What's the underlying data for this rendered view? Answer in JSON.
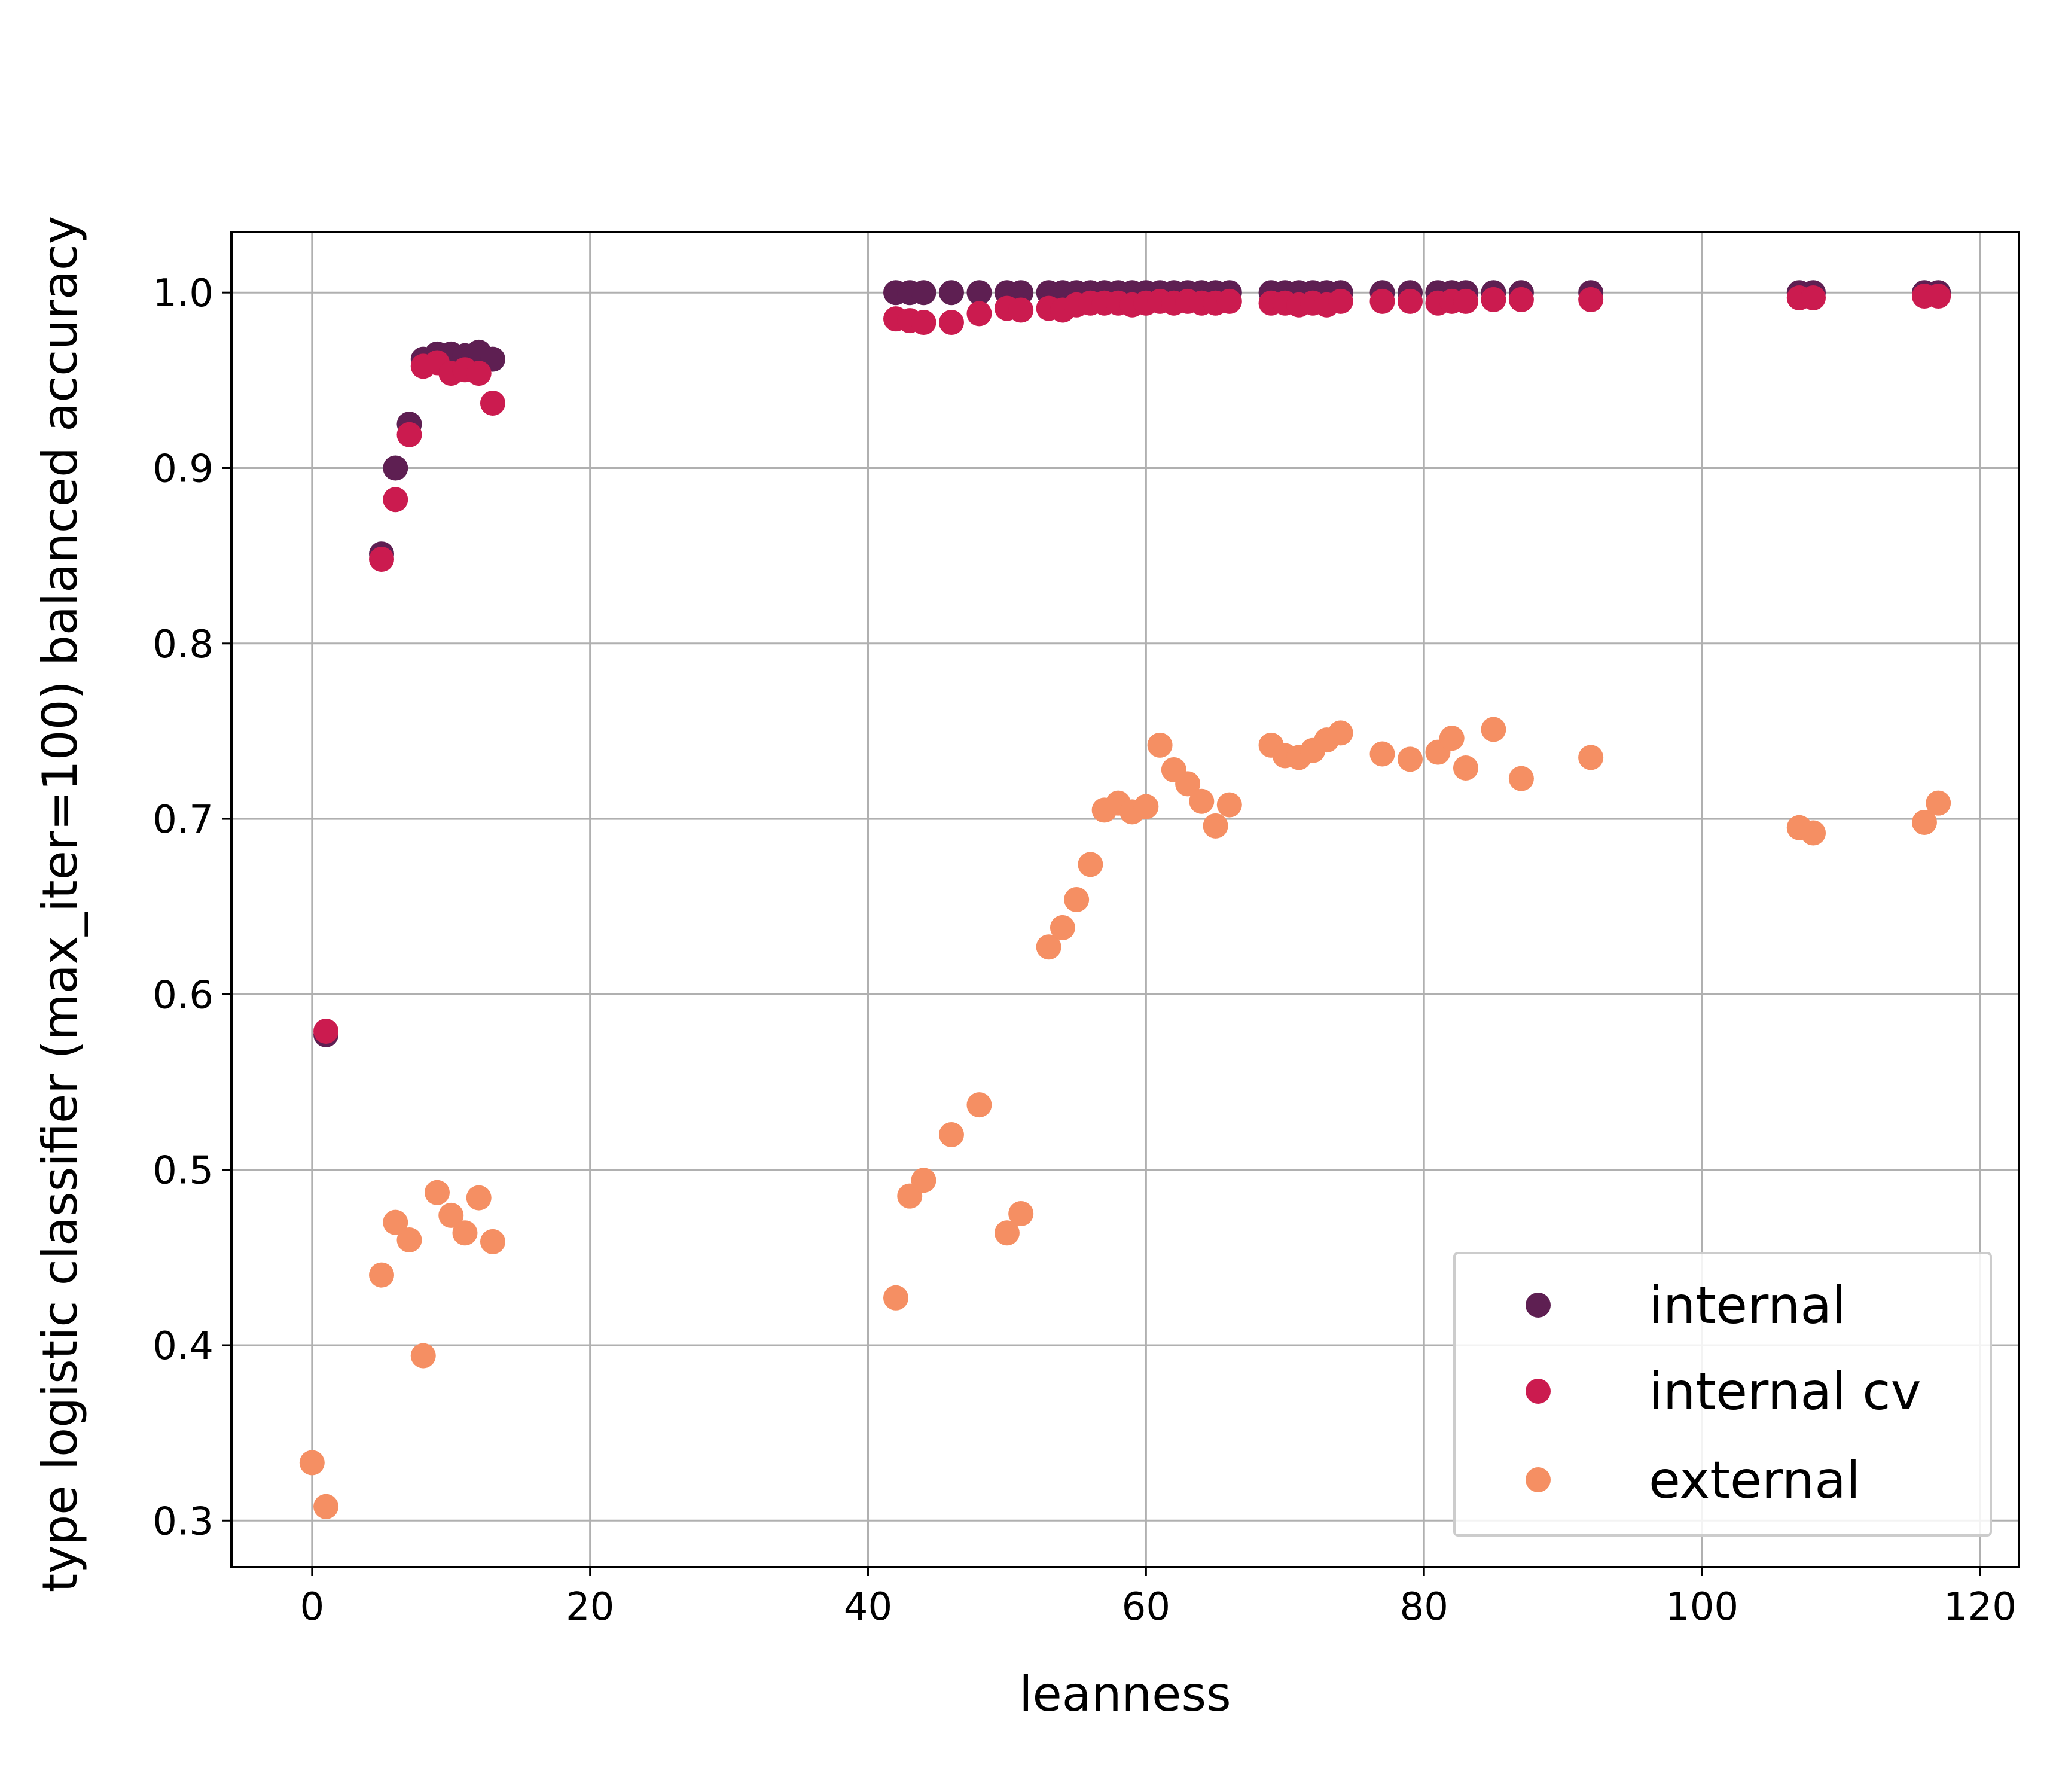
{
  "chart_data": {
    "type": "scatter",
    "title": "",
    "xlabel": "leanness",
    "ylabel": "type logistic classifier (max_iter=100) balanced accuracy",
    "xlim": [
      -5.8,
      122.8
    ],
    "ylim": [
      0.2735,
      1.0345
    ],
    "xticks": [
      0,
      20,
      40,
      60,
      80,
      100,
      120
    ],
    "yticks": [
      0.3,
      0.4,
      0.5,
      0.6,
      0.7,
      0.8,
      0.9,
      1.0
    ],
    "xtick_labels": [
      "0",
      "20",
      "40",
      "60",
      "80",
      "100",
      "120"
    ],
    "ytick_labels": [
      "0.3",
      "0.4",
      "0.5",
      "0.6",
      "0.7",
      "0.8",
      "0.9",
      "1.0"
    ],
    "grid": true,
    "legend_position": "lower-right",
    "series": [
      {
        "name": "internal",
        "color": "#5e1f52",
        "points": [
          [
            1,
            0.577
          ],
          [
            5,
            0.851
          ],
          [
            6,
            0.9
          ],
          [
            7,
            0.925
          ],
          [
            8,
            0.962
          ],
          [
            9,
            0.965
          ],
          [
            10,
            0.965
          ],
          [
            11,
            0.964
          ],
          [
            12,
            0.966
          ],
          [
            13,
            0.962
          ],
          [
            42,
            1.0
          ],
          [
            43,
            1.0
          ],
          [
            44,
            1.0
          ],
          [
            46,
            1.0
          ],
          [
            48,
            1.0
          ],
          [
            50,
            1.0
          ],
          [
            51,
            1.0
          ],
          [
            53,
            1.0
          ],
          [
            54,
            1.0
          ],
          [
            55,
            1.0
          ],
          [
            56,
            1.0
          ],
          [
            57,
            1.0
          ],
          [
            58,
            1.0
          ],
          [
            59,
            1.0
          ],
          [
            60,
            1.0
          ],
          [
            61,
            1.0
          ],
          [
            62,
            1.0
          ],
          [
            63,
            1.0
          ],
          [
            64,
            1.0
          ],
          [
            65,
            1.0
          ],
          [
            66,
            1.0
          ],
          [
            69,
            1.0
          ],
          [
            70,
            1.0
          ],
          [
            71,
            1.0
          ],
          [
            72,
            1.0
          ],
          [
            73,
            1.0
          ],
          [
            74,
            1.0
          ],
          [
            77,
            1.0
          ],
          [
            79,
            1.0
          ],
          [
            81,
            1.0
          ],
          [
            82,
            1.0
          ],
          [
            83,
            1.0
          ],
          [
            85,
            1.0
          ],
          [
            87,
            1.0
          ],
          [
            92,
            1.0
          ],
          [
            107,
            1.0
          ],
          [
            108,
            1.0
          ],
          [
            116,
            1.0
          ],
          [
            117,
            1.0
          ]
        ]
      },
      {
        "name": "internal cv",
        "color": "#cb1b4f",
        "points": [
          [
            1,
            0.579
          ],
          [
            5,
            0.848
          ],
          [
            6,
            0.882
          ],
          [
            7,
            0.919
          ],
          [
            8,
            0.958
          ],
          [
            9,
            0.96
          ],
          [
            10,
            0.954
          ],
          [
            11,
            0.956
          ],
          [
            12,
            0.954
          ],
          [
            13,
            0.937
          ],
          [
            42,
            0.985
          ],
          [
            43,
            0.984
          ],
          [
            44,
            0.983
          ],
          [
            46,
            0.983
          ],
          [
            48,
            0.988
          ],
          [
            50,
            0.991
          ],
          [
            51,
            0.99
          ],
          [
            53,
            0.991
          ],
          [
            54,
            0.99
          ],
          [
            55,
            0.993
          ],
          [
            56,
            0.994
          ],
          [
            57,
            0.994
          ],
          [
            58,
            0.994
          ],
          [
            59,
            0.993
          ],
          [
            60,
            0.994
          ],
          [
            61,
            0.995
          ],
          [
            62,
            0.994
          ],
          [
            63,
            0.995
          ],
          [
            64,
            0.994
          ],
          [
            65,
            0.994
          ],
          [
            66,
            0.995
          ],
          [
            69,
            0.994
          ],
          [
            70,
            0.994
          ],
          [
            71,
            0.993
          ],
          [
            72,
            0.994
          ],
          [
            73,
            0.993
          ],
          [
            74,
            0.995
          ],
          [
            77,
            0.995
          ],
          [
            79,
            0.995
          ],
          [
            81,
            0.994
          ],
          [
            82,
            0.995
          ],
          [
            83,
            0.995
          ],
          [
            85,
            0.996
          ],
          [
            87,
            0.996
          ],
          [
            92,
            0.996
          ],
          [
            107,
            0.997
          ],
          [
            108,
            0.997
          ],
          [
            116,
            0.998
          ],
          [
            117,
            0.998
          ]
        ]
      },
      {
        "name": "external",
        "color": "#f58f63",
        "points": [
          [
            0,
            0.333
          ],
          [
            1,
            0.308
          ],
          [
            5,
            0.44
          ],
          [
            6,
            0.47
          ],
          [
            7,
            0.46
          ],
          [
            8,
            0.394
          ],
          [
            9,
            0.487
          ],
          [
            10,
            0.474
          ],
          [
            11,
            0.464
          ],
          [
            12,
            0.484
          ],
          [
            13,
            0.459
          ],
          [
            42,
            0.427
          ],
          [
            43,
            0.485
          ],
          [
            44,
            0.494
          ],
          [
            46,
            0.52
          ],
          [
            48,
            0.537
          ],
          [
            50,
            0.464
          ],
          [
            51,
            0.475
          ],
          [
            53,
            0.627
          ],
          [
            54,
            0.638
          ],
          [
            55,
            0.654
          ],
          [
            56,
            0.674
          ],
          [
            57,
            0.705
          ],
          [
            58,
            0.709
          ],
          [
            59,
            0.704
          ],
          [
            60,
            0.707
          ],
          [
            61,
            0.742
          ],
          [
            62,
            0.728
          ],
          [
            63,
            0.72
          ],
          [
            64,
            0.71
          ],
          [
            65,
            0.696
          ],
          [
            66,
            0.708
          ],
          [
            69,
            0.742
          ],
          [
            70,
            0.736
          ],
          [
            71,
            0.735
          ],
          [
            72,
            0.739
          ],
          [
            73,
            0.745
          ],
          [
            74,
            0.749
          ],
          [
            77,
            0.737
          ],
          [
            79,
            0.734
          ],
          [
            81,
            0.738
          ],
          [
            82,
            0.746
          ],
          [
            83,
            0.729
          ],
          [
            85,
            0.751
          ],
          [
            87,
            0.723
          ],
          [
            92,
            0.735
          ],
          [
            107,
            0.695
          ],
          [
            108,
            0.692
          ],
          [
            116,
            0.698
          ],
          [
            117,
            0.709
          ]
        ]
      }
    ]
  }
}
